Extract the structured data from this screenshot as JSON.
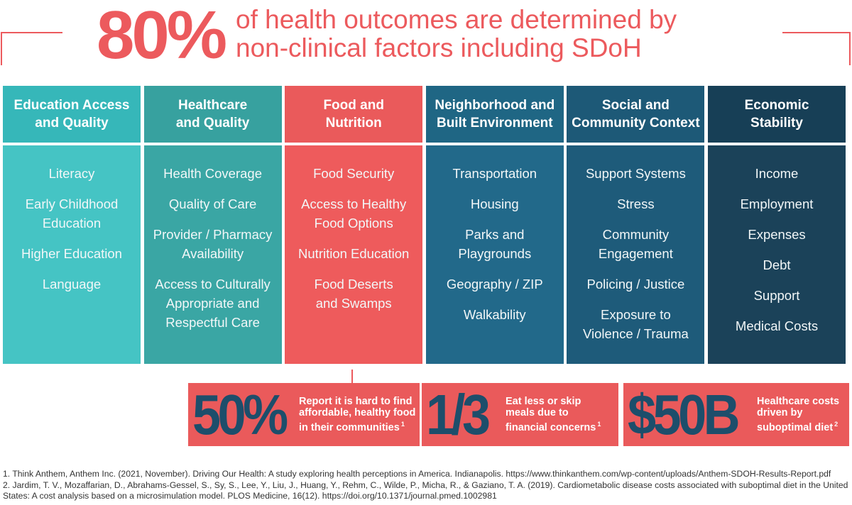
{
  "header": {
    "stat": "80%",
    "text_lines": [
      "of health outcomes are determined by",
      "non-clinical factors including SDoH"
    ]
  },
  "columns": [
    {
      "title_lines": [
        "Education Access",
        "and Quality"
      ],
      "items": [
        [
          "Literacy"
        ],
        [
          "Early Childhood",
          "Education"
        ],
        [
          "Higher Education"
        ],
        [
          "Language"
        ]
      ]
    },
    {
      "title_lines": [
        "Healthcare",
        "and Quality"
      ],
      "items": [
        [
          "Health Coverage"
        ],
        [
          "Quality of Care"
        ],
        [
          "Provider / Pharmacy",
          "Availability"
        ],
        [
          "Access to Culturally",
          "Appropriate and",
          "Respectful Care"
        ]
      ]
    },
    {
      "title_lines": [
        "Food and",
        "Nutrition"
      ],
      "items": [
        [
          "Food Security"
        ],
        [
          "Access to Healthy",
          "Food Options"
        ],
        [
          "Nutrition Education"
        ],
        [
          "Food Deserts",
          "and Swamps"
        ]
      ]
    },
    {
      "title_lines": [
        "Neighborhood and",
        "Built Environment"
      ],
      "items": [
        [
          "Transportation"
        ],
        [
          "Housing"
        ],
        [
          "Parks and",
          "Playgrounds"
        ],
        [
          "Geography / ZIP"
        ],
        [
          "Walkability"
        ]
      ]
    },
    {
      "title_lines": [
        "Social and",
        "Community Context"
      ],
      "items": [
        [
          "Support Systems"
        ],
        [
          "Stress"
        ],
        [
          "Community",
          "Engagement"
        ],
        [
          "Policing / Justice"
        ],
        [
          "Exposure to",
          "Violence / Trauma"
        ]
      ]
    },
    {
      "title_lines": [
        "Economic",
        "Stability"
      ],
      "items": [
        [
          "Income"
        ],
        [
          "Employment"
        ],
        [
          "Expenses"
        ],
        [
          "Debt"
        ],
        [
          "Support"
        ],
        [
          "Medical Costs"
        ]
      ]
    }
  ],
  "stats": [
    {
      "value": "50%",
      "text_lines": [
        "Report it is hard to find",
        "affordable, healthy food",
        "in their communities"
      ],
      "note": "1"
    },
    {
      "value": "1/3",
      "text_lines": [
        "Eat less or skip",
        "meals due to",
        "financial concerns"
      ],
      "note": "1"
    },
    {
      "value": "$50B",
      "text_lines": [
        "Healthcare costs",
        "driven by",
        "suboptimal diet"
      ],
      "note": "2"
    }
  ],
  "footnotes": [
    "1. Think Anthem, Anthem Inc. (2021, November). Driving Our Health: A study exploring health perceptions in America. Indianapolis. https://www.thinkanthem.com/wp-content/uploads/Anthem-SDOH-Results-Report.pdf",
    "2. Jardim, T. V., Mozaffarian, D., Abrahams-Gessel, S., Sy, S., Lee, Y., Liu, J., Huang, Y., Rehm, C., Wilde, P., Micha, R., & Gaziano, T. A. (2019). Cardiometabolic disease costs associated with suboptimal diet in the United States: A cost analysis based on a microsimulation model. PLOS Medicine, 16(12). https://doi.org/10.1371/journal.pmed.1002981"
  ]
}
